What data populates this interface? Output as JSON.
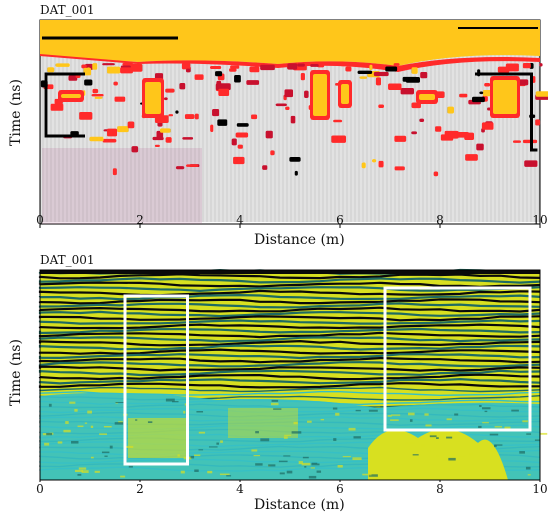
{
  "chart_data": [
    {
      "type": "heatmap",
      "panel_label": "DAT_001",
      "xlabel": "Distance (m)",
      "ylabel": "Time (ns)",
      "xlim": [
        0,
        10
      ],
      "xticks": [
        "0",
        "2",
        "4",
        "6",
        "8",
        "10"
      ],
      "colormap": [
        "#000000",
        "#c8102e",
        "#ff2a2a",
        "#ffc61a"
      ],
      "annotations": [
        {
          "type": "bracket",
          "side": "left",
          "x": [
            0,
            0.9
          ],
          "color": "#000000"
        },
        {
          "type": "bracket",
          "side": "right",
          "x": [
            8.7,
            9.95
          ],
          "color": "#000000"
        }
      ]
    },
    {
      "type": "heatmap",
      "panel_label": "DAT_001",
      "xlabel": "Distance (m)",
      "ylabel": "Time (ns)",
      "xlim": [
        0,
        10
      ],
      "xticks": [
        "0",
        "2",
        "4",
        "6",
        "8",
        "10"
      ],
      "colormap": [
        "#0a0a0a",
        "#1e6b62",
        "#36c0c4",
        "#d8e020"
      ],
      "annotations": [
        {
          "type": "rectangle",
          "x": [
            1.7,
            2.95
          ],
          "color": "#ffffff"
        },
        {
          "type": "rectangle",
          "x": [
            6.9,
            9.8
          ],
          "color": "#ffffff"
        }
      ]
    }
  ]
}
